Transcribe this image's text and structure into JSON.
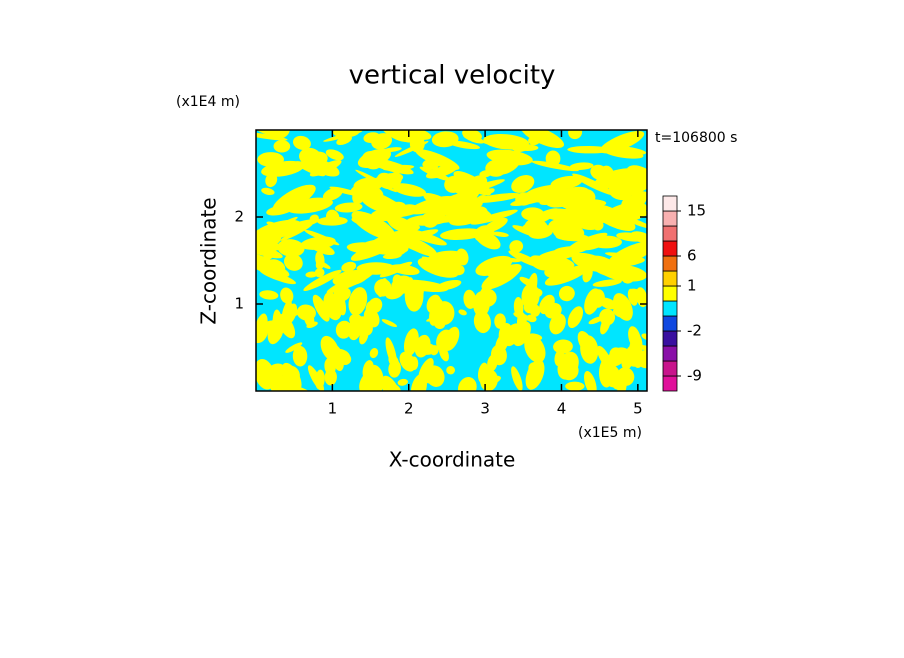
{
  "chart_data": {
    "type": "contour",
    "title": "vertical velocity",
    "x_label": "X-coordinate",
    "y_label": "Z-coordinate",
    "x_unit": "(x1E5 m)",
    "y_unit": "(x1E4 m)",
    "time_label": "t=106800 s",
    "xlim": [
      0,
      5.12
    ],
    "ylim": [
      0,
      3
    ],
    "xticks": [
      1,
      2,
      3,
      4,
      5
    ],
    "yticks": [
      1,
      2
    ],
    "colorbar": {
      "levels": [
        -12,
        -9,
        -6,
        -3,
        -2,
        -1,
        0,
        1,
        3,
        6,
        9,
        12,
        15,
        25
      ],
      "colors": [
        "#e0109a",
        "#c8148c",
        "#8a10a8",
        "#3a10a0",
        "#1048e0",
        "#00e5ff",
        "#ffff00",
        "#ffd000",
        "#f07010",
        "#f01010",
        "#f07070",
        "#f8b0b0",
        "#fde8e8"
      ],
      "ticks": [
        -9,
        -2,
        1,
        6,
        15
      ]
    }
  }
}
